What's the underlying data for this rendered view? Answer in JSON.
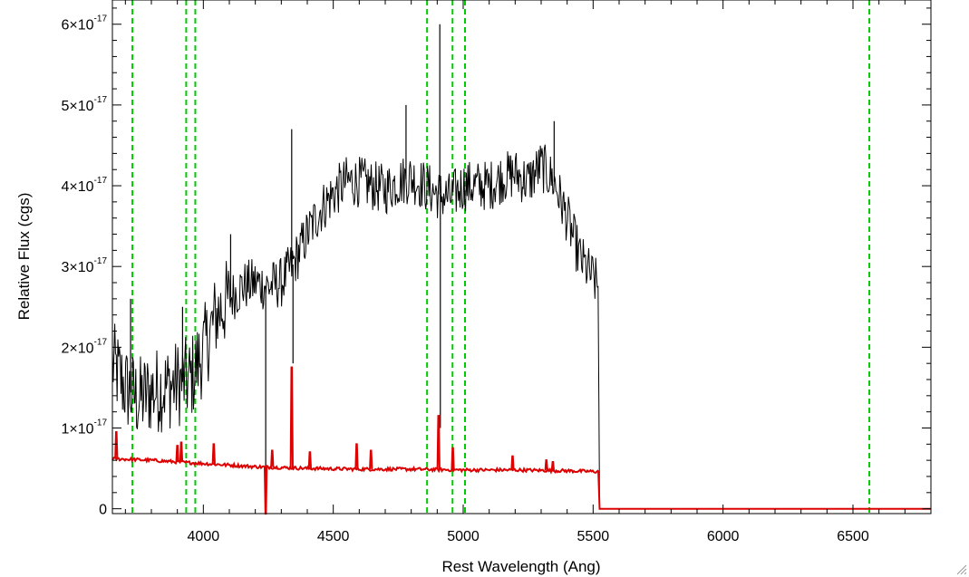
{
  "chart_data": {
    "type": "line",
    "xlabel": "Rest Wavelength (Ang)",
    "ylabel": "Relative Flux (cgs)",
    "xlim": [
      3650,
      6800
    ],
    "ylim": [
      -0.06,
      6.3
    ],
    "y_multiplier": "×10^-17",
    "grid": false,
    "xticks": [
      {
        "value": 4000,
        "label": "4000"
      },
      {
        "value": 4500,
        "label": "4500"
      },
      {
        "value": 5000,
        "label": "5000"
      },
      {
        "value": 5500,
        "label": "5500"
      },
      {
        "value": 6000,
        "label": "6000"
      },
      {
        "value": 6500,
        "label": "6500"
      }
    ],
    "yticks": [
      {
        "value": 0,
        "base": "0",
        "exp": ""
      },
      {
        "value": 1,
        "base": "1×10",
        "exp": "-17"
      },
      {
        "value": 2,
        "base": "2×10",
        "exp": "-17"
      },
      {
        "value": 3,
        "base": "3×10",
        "exp": "-17"
      },
      {
        "value": 4,
        "base": "4×10",
        "exp": "-17"
      },
      {
        "value": 5,
        "base": "5×10",
        "exp": "-17"
      },
      {
        "value": 6,
        "base": "6×10",
        "exp": "-17"
      }
    ],
    "vlines": {
      "color": "#00cc00",
      "style": "dashed",
      "x": [
        3727,
        3934,
        3969,
        4861,
        4959,
        5007,
        6563
      ]
    },
    "series": [
      {
        "color": "#000000",
        "x": [
          3650,
          3700,
          3750,
          3800,
          3850,
          3900,
          3950,
          4000,
          4050,
          4100,
          4150,
          4200,
          4250,
          4300,
          4350,
          4400,
          4450,
          4500,
          4550,
          4600,
          4650,
          4700,
          4750,
          4800,
          4850,
          4900,
          4950,
          5000,
          5050,
          5100,
          5150,
          5200,
          5250,
          5300,
          5350,
          5400,
          5450,
          5500,
          5520,
          5525,
          6800
        ],
        "y": [
          1.8,
          1.5,
          1.35,
          1.45,
          1.5,
          1.55,
          1.6,
          1.95,
          2.4,
          2.6,
          2.75,
          2.8,
          2.75,
          2.8,
          3.05,
          3.4,
          3.7,
          3.9,
          4.05,
          4.05,
          4.0,
          3.95,
          4.05,
          4.1,
          4.0,
          3.9,
          3.85,
          4.0,
          4.0,
          4.0,
          4.1,
          4.15,
          4.05,
          4.25,
          4.05,
          3.6,
          3.1,
          2.85,
          2.75,
          0.0,
          0.0
        ]
      },
      {
        "color": "#dd0000",
        "x": [
          3650,
          3800,
          4000,
          4200,
          4400,
          4600,
          4800,
          5000,
          5200,
          5400,
          5520,
          5525,
          6800
        ],
        "y": [
          0.62,
          0.6,
          0.56,
          0.52,
          0.5,
          0.49,
          0.49,
          0.48,
          0.48,
          0.47,
          0.46,
          0.0,
          0.0
        ]
      }
    ],
    "spikes": {
      "black": [
        {
          "x": 3720,
          "y": 2.6
        },
        {
          "x": 3920,
          "y": 2.5
        },
        {
          "x": 4105,
          "y": 3.4
        },
        {
          "x": 4240,
          "y": 0.0
        },
        {
          "x": 4340,
          "y": 4.7
        },
        {
          "x": 4345,
          "y": 1.8
        },
        {
          "x": 4780,
          "y": 5.0
        },
        {
          "x": 4910,
          "y": 6.0
        },
        {
          "x": 4912,
          "y": 1.0
        },
        {
          "x": 5350,
          "y": 4.8
        }
      ],
      "red": [
        {
          "x": 3665,
          "y": 0.95
        },
        {
          "x": 3900,
          "y": 0.78
        },
        {
          "x": 3915,
          "y": 0.82
        },
        {
          "x": 4040,
          "y": 0.8
        },
        {
          "x": 4240,
          "y": -0.06
        },
        {
          "x": 4265,
          "y": 0.72
        },
        {
          "x": 4340,
          "y": 1.75
        },
        {
          "x": 4410,
          "y": 0.7
        },
        {
          "x": 4590,
          "y": 0.8
        },
        {
          "x": 4645,
          "y": 0.72
        },
        {
          "x": 4905,
          "y": 1.15
        },
        {
          "x": 4960,
          "y": 0.75
        },
        {
          "x": 5190,
          "y": 0.65
        },
        {
          "x": 5320,
          "y": 0.6
        },
        {
          "x": 5345,
          "y": 0.58
        }
      ]
    }
  }
}
